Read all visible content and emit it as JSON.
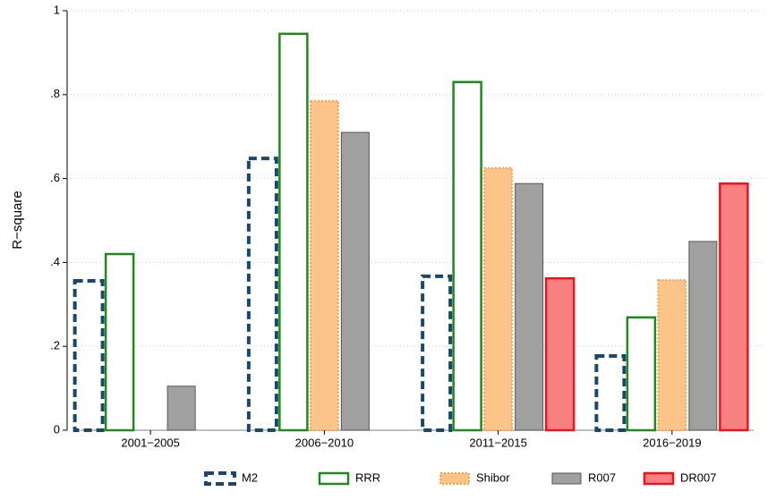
{
  "chart_data": {
    "type": "bar",
    "y_label": "R−square",
    "categories": [
      "2001−2005",
      "2006−2010",
      "2011−2015",
      "2016−2019"
    ],
    "series": [
      {
        "name": "M2",
        "color": "#1a476f",
        "fill": "none",
        "dashed": true,
        "values": [
          0.356,
          0.648,
          0.367,
          0.177
        ]
      },
      {
        "name": "RRR",
        "color": "#1e8a1e",
        "fill": "#ffffff",
        "dashed": false,
        "values": [
          0.42,
          0.945,
          0.83,
          0.269
        ]
      },
      {
        "name": "Shibor",
        "color": "#f7a050",
        "fill": "#fdc48a",
        "dashed": false,
        "values": [
          null,
          0.785,
          0.625,
          0.358
        ]
      },
      {
        "name": "R007",
        "color": "#555555",
        "fill": "#a0a0a0",
        "dashed": false,
        "values": [
          0.105,
          0.71,
          0.588,
          0.45
        ]
      },
      {
        "name": "DR007",
        "color": "#e8141e",
        "fill": "#f98080",
        "dashed": false,
        "values": [
          null,
          null,
          0.362,
          0.588
        ]
      }
    ],
    "ylim": [
      0,
      1
    ],
    "yticks": [
      0,
      {
        "value": 0.2,
        "label": ".2"
      },
      {
        "value": 0.4,
        "label": ".4"
      },
      {
        "value": 0.6,
        "label": ".6"
      },
      {
        "value": 0.8,
        "label": ".8"
      },
      1
    ],
    "grid": true,
    "legend": "bottom"
  }
}
